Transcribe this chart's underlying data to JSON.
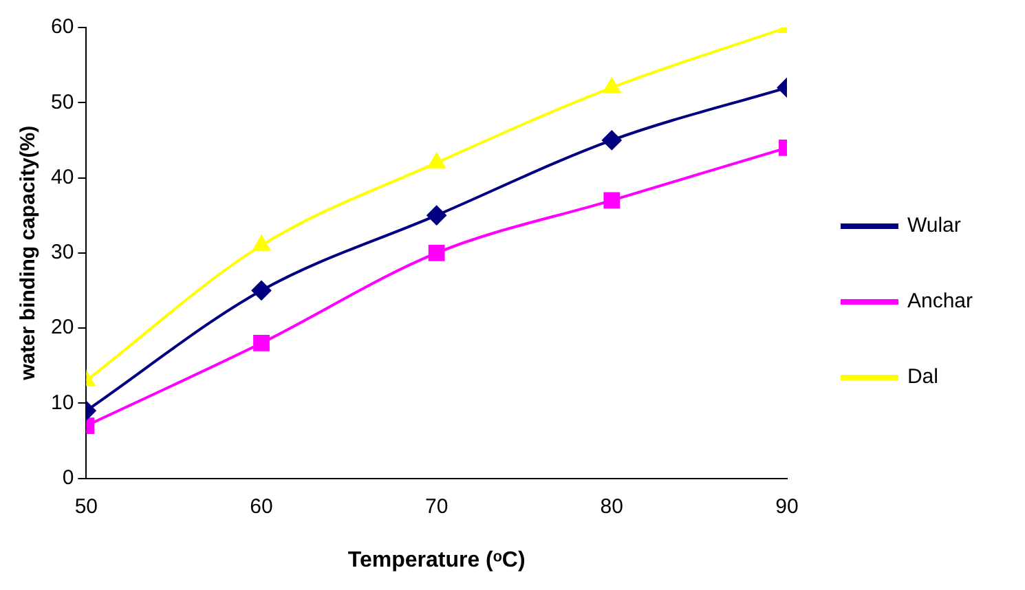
{
  "chart_data": {
    "type": "line",
    "xlabel": "Temperature (ᵒC)",
    "ylabel": "water binding capacity(%)",
    "x": [
      50,
      60,
      70,
      80,
      90
    ],
    "series": [
      {
        "name": "Wular",
        "color": "#000080",
        "marker": "diamond",
        "values": [
          9,
          25,
          35,
          45,
          52
        ]
      },
      {
        "name": "Anchar",
        "color": "#ff00ff",
        "marker": "square",
        "values": [
          7,
          18,
          30,
          37,
          44
        ]
      },
      {
        "name": "Dal",
        "color": "#ffff00",
        "marker": "triangle",
        "values": [
          13,
          31,
          42,
          52,
          60
        ]
      }
    ],
    "xlim": [
      50,
      90
    ],
    "xticks": [
      50,
      60,
      70,
      80,
      90
    ],
    "ylim": [
      0,
      60
    ],
    "yticks": [
      0,
      10,
      20,
      30,
      40,
      50,
      60
    ],
    "grid": false,
    "legend": "right"
  }
}
